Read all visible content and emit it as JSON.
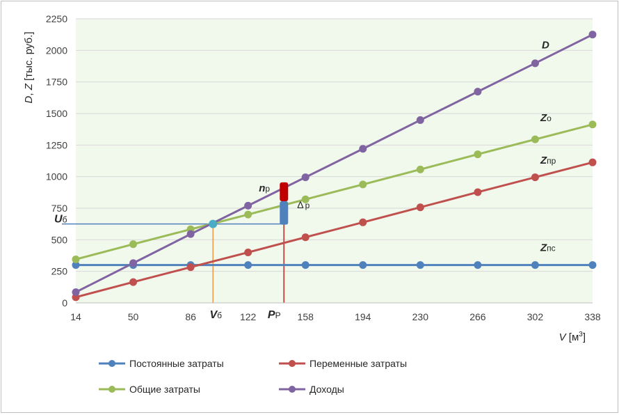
{
  "chart_data": {
    "type": "line",
    "x": [
      14,
      50,
      86,
      122,
      158,
      194,
      230,
      266,
      302,
      338
    ],
    "x_tick_labels": [
      "14",
      "50",
      "86",
      "122",
      "158",
      "194",
      "230",
      "266",
      "302",
      "338"
    ],
    "y_ticks": [
      0,
      250,
      500,
      750,
      1000,
      1250,
      1500,
      1750,
      2000,
      2250
    ],
    "ylim": [
      0,
      2250
    ],
    "xlabel": {
      "main": "V",
      "unit": " [м",
      "sup": "3",
      "close": "]"
    },
    "ylabel": {
      "d": "D",
      "sep": ", ",
      "z": "Z",
      "unit": " [тыс. руб.]"
    },
    "series": [
      {
        "name": "Постоянные затраты",
        "color": "#4f81bd",
        "values": [
          300,
          300,
          300,
          300,
          300,
          300,
          300,
          300,
          300,
          300
        ]
      },
      {
        "name": "Переменные затраты",
        "color": "#c0504d",
        "values": [
          45,
          165,
          283,
          400,
          520,
          638,
          757,
          877,
          995,
          1113
        ]
      },
      {
        "name": "Общие затраты",
        "color": "#9bbb59",
        "values": [
          345,
          465,
          583,
          700,
          820,
          938,
          1057,
          1177,
          1295,
          1413
        ]
      },
      {
        "name": "Доходы",
        "color": "#8064a2",
        "values": [
          85,
          315,
          545,
          770,
          995,
          1220,
          1448,
          1673,
          1898,
          2125
        ]
      }
    ],
    "series_labels": [
      {
        "main": "Z",
        "sub": "пс",
        "series": 0
      },
      {
        "main": "Z",
        "sub": "пр",
        "series": 1
      },
      {
        "main": "Z",
        "sub": "о",
        "series": 2
      },
      {
        "main": "D",
        "sub": "",
        "series": 3
      }
    ],
    "annotations": {
      "breakeven": {
        "x": 100,
        "y": 625,
        "v_main": "V",
        "v_sub": "б",
        "u_main": "U",
        "u_sub": "б",
        "point_color": "#4bacc6",
        "vline_color": "#f79646",
        "hline_color": "#4f81bd"
      },
      "production": {
        "x": 144.5,
        "p_main": "P",
        "p_sub": "Р",
        "line_color": "#c0504d"
      },
      "profit": {
        "main": "n",
        "sub": "р",
        "y_from": 805,
        "y_to": 955,
        "color": "#c00000"
      },
      "margin": {
        "main": "Δ",
        "sub": "р",
        "y_from": 620,
        "y_to": 805,
        "color": "#4f81bd"
      }
    },
    "grid": "horizontal",
    "legend_position": "bottom",
    "plot_background": "#f1f8ec"
  }
}
